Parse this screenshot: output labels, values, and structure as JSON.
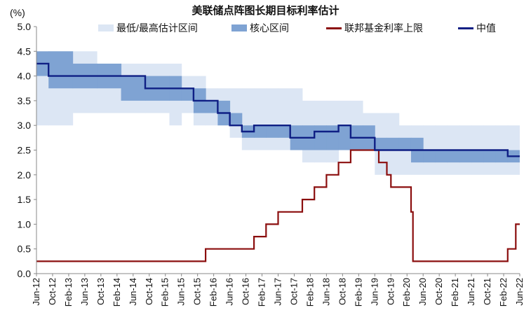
{
  "chart_data": {
    "type": "step-line-band",
    "title": "美联储点阵图长期目标利率估计",
    "ylabel": "(%)",
    "ylim": [
      0.0,
      5.0
    ],
    "yticks": [
      "5.0",
      "4.5",
      "4.0",
      "3.5",
      "3.0",
      "2.5",
      "2.0",
      "1.5",
      "1.0",
      "0.5",
      "0.0"
    ],
    "x_range": [
      "2012-06",
      "2022-06"
    ],
    "xticks": [
      "Jun-12",
      "Oct-12",
      "Feb-13",
      "Jun-13",
      "Oct-13",
      "Feb-14",
      "Jun-14",
      "Oct-14",
      "Feb-15",
      "Jun-15",
      "Oct-15",
      "Feb-16",
      "Jun-16",
      "Oct-16",
      "Feb-17",
      "Jun-17",
      "Oct-17",
      "Feb-18",
      "Jun-18",
      "Oct-18",
      "Feb-19",
      "Jun-19",
      "Oct-19",
      "Feb-20",
      "Jun-20",
      "Oct-20",
      "Feb-21",
      "Jun-21",
      "Oct-21",
      "Feb-22",
      "Jun-22"
    ],
    "legend": [
      "最低/最高估计区间",
      "核心区间",
      "联邦基金利率上限",
      "中值"
    ],
    "colors": {
      "range": "#dce6f4",
      "core": "#7fa3d3",
      "fed": "#8b0e0e",
      "median": "#0f1f84"
    },
    "range_band": {
      "x": [
        "2012-06",
        "2012-09",
        "2013-03",
        "2013-09",
        "2014-03",
        "2014-09",
        "2015-03",
        "2015-06",
        "2015-09",
        "2015-12",
        "2016-03",
        "2016-06",
        "2016-09",
        "2016-12",
        "2017-03",
        "2017-06",
        "2017-09",
        "2017-12",
        "2018-03",
        "2018-06",
        "2018-09",
        "2018-12",
        "2019-03",
        "2019-06",
        "2019-09",
        "2019-12",
        "2020-03",
        "2020-06",
        "2020-09",
        "2020-12",
        "2021-03",
        "2021-06",
        "2021-09",
        "2021-12",
        "2022-03",
        "2022-06"
      ],
      "low": [
        3.0,
        3.0,
        3.25,
        3.25,
        3.25,
        3.25,
        3.0,
        3.25,
        3.0,
        3.0,
        3.0,
        2.75,
        2.5,
        2.5,
        2.5,
        2.5,
        2.5,
        2.25,
        2.25,
        2.25,
        2.5,
        2.5,
        2.5,
        2.0,
        2.0,
        2.0,
        2.0,
        2.0,
        2.0,
        2.0,
        2.0,
        2.0,
        2.0,
        2.0,
        2.0,
        2.0
      ],
      "high": [
        4.25,
        4.5,
        4.5,
        4.25,
        4.25,
        4.25,
        4.25,
        4.0,
        4.0,
        3.75,
        3.75,
        3.75,
        3.75,
        3.75,
        3.75,
        3.75,
        3.75,
        3.5,
        3.5,
        3.5,
        3.5,
        3.5,
        3.25,
        3.25,
        3.25,
        3.0,
        3.0,
        3.0,
        3.0,
        3.0,
        3.0,
        3.0,
        3.0,
        3.0,
        3.0,
        3.0
      ]
    },
    "core_band": {
      "x": [
        "2012-06",
        "2012-09",
        "2013-03",
        "2013-09",
        "2014-03",
        "2014-09",
        "2015-03",
        "2015-06",
        "2015-09",
        "2015-12",
        "2016-03",
        "2016-06",
        "2016-09",
        "2016-12",
        "2017-03",
        "2017-06",
        "2017-09",
        "2017-12",
        "2018-03",
        "2018-06",
        "2018-09",
        "2018-12",
        "2019-03",
        "2019-06",
        "2019-09",
        "2019-12",
        "2020-03",
        "2020-06",
        "2020-09",
        "2020-12",
        "2021-03",
        "2021-06",
        "2021-09",
        "2021-12",
        "2022-03",
        "2022-06"
      ],
      "low": [
        4.0,
        3.75,
        3.75,
        3.75,
        3.5,
        3.5,
        3.5,
        3.5,
        3.25,
        3.25,
        3.0,
        3.0,
        2.75,
        2.75,
        2.75,
        2.75,
        2.5,
        2.5,
        2.5,
        2.5,
        2.5,
        2.5,
        2.5,
        2.5,
        2.5,
        2.5,
        2.25,
        2.25,
        2.25,
        2.25,
        2.25,
        2.25,
        2.25,
        2.25,
        2.25,
        2.25
      ],
      "high": [
        4.5,
        4.5,
        4.25,
        4.25,
        4.0,
        4.0,
        4.0,
        3.75,
        3.75,
        3.5,
        3.5,
        3.25,
        3.0,
        3.0,
        3.0,
        3.0,
        3.0,
        3.0,
        3.0,
        3.0,
        3.0,
        3.0,
        3.0,
        2.75,
        2.75,
        2.75,
        2.75,
        2.5,
        2.5,
        2.5,
        2.5,
        2.5,
        2.5,
        2.5,
        2.5,
        2.5
      ]
    },
    "median": {
      "x": [
        "2012-06",
        "2012-09",
        "2013-03",
        "2013-09",
        "2014-03",
        "2014-09",
        "2015-03",
        "2015-06",
        "2015-09",
        "2015-12",
        "2016-03",
        "2016-06",
        "2016-09",
        "2016-12",
        "2017-03",
        "2017-06",
        "2017-09",
        "2017-12",
        "2018-03",
        "2018-06",
        "2018-09",
        "2018-12",
        "2019-03",
        "2019-06",
        "2019-09",
        "2019-12",
        "2020-03",
        "2020-06",
        "2020-09",
        "2020-12",
        "2021-03",
        "2021-06",
        "2021-09",
        "2021-12",
        "2022-03",
        "2022-06"
      ],
      "y": [
        4.25,
        4.0,
        4.0,
        4.0,
        4.0,
        3.75,
        3.75,
        3.75,
        3.5,
        3.5,
        3.25,
        3.0,
        2.875,
        3.0,
        3.0,
        3.0,
        2.75,
        2.75,
        2.875,
        2.875,
        3.0,
        2.75,
        2.75,
        2.5,
        2.5,
        2.5,
        2.5,
        2.5,
        2.5,
        2.5,
        2.5,
        2.5,
        2.5,
        2.5,
        2.375,
        2.375
      ]
    },
    "fed_funds_upper": {
      "x": [
        "2012-06",
        "2015-12",
        "2016-12",
        "2017-03",
        "2017-06",
        "2017-12",
        "2018-03",
        "2018-06",
        "2018-09",
        "2018-12",
        "2019-07",
        "2019-09",
        "2019-10",
        "2020-03",
        "2020-03-15",
        "2022-03",
        "2022-05",
        "2022-06"
      ],
      "y": [
        0.25,
        0.5,
        0.75,
        1.0,
        1.25,
        1.5,
        1.75,
        2.0,
        2.25,
        2.5,
        2.25,
        2.0,
        1.75,
        1.25,
        0.25,
        0.5,
        1.0,
        1.0
      ]
    }
  }
}
